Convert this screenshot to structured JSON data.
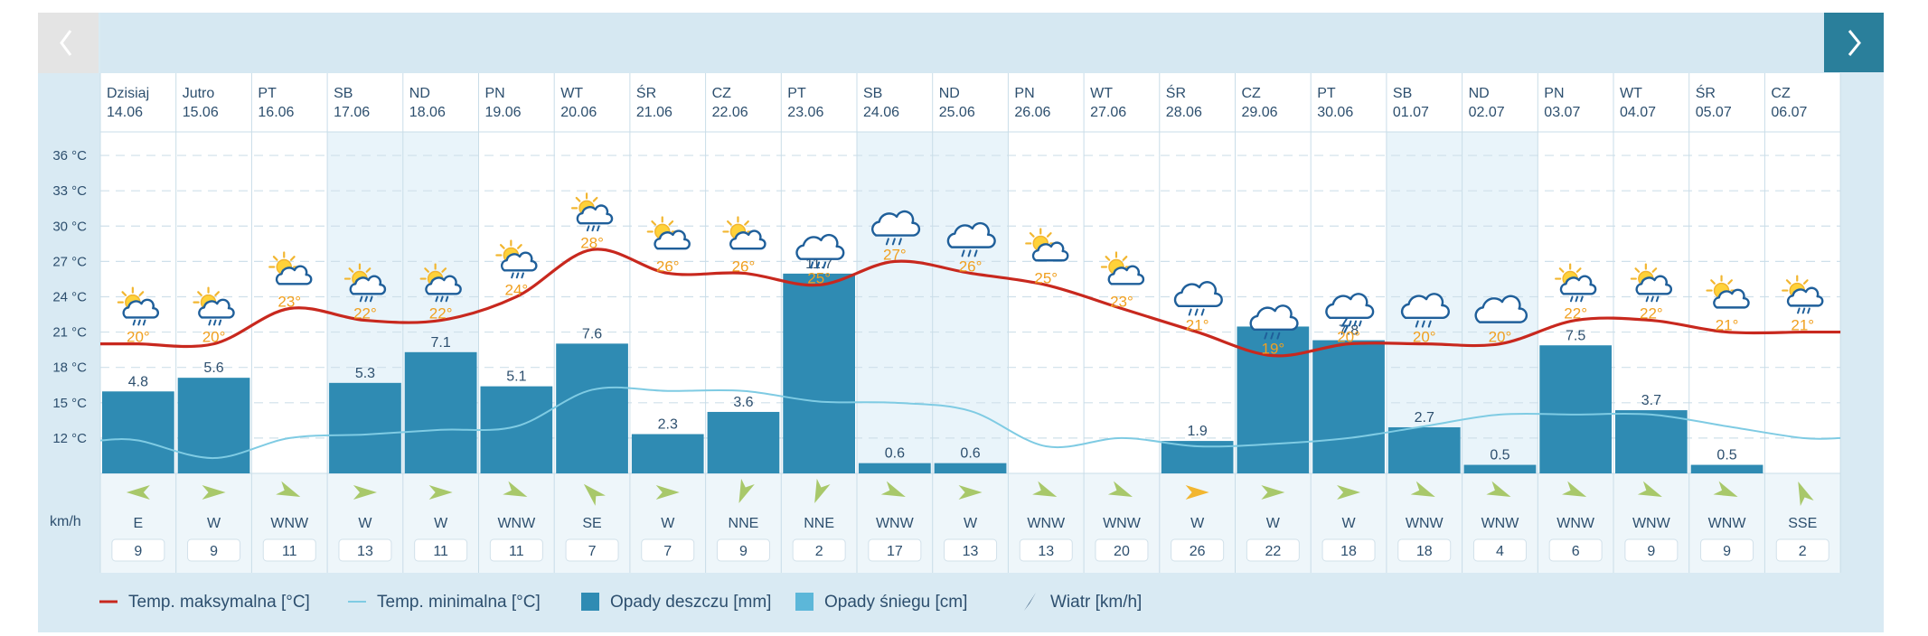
{
  "nav": {
    "prev_icon": "chevron-left-icon",
    "next_icon": "chevron-right-icon"
  },
  "axis": {
    "temp_ticks": [
      "36 °C",
      "33 °C",
      "30 °C",
      "27 °C",
      "24 °C",
      "21 °C",
      "18 °C",
      "15 °C",
      "12 °C"
    ],
    "wind_unit": "km/h"
  },
  "colors": {
    "frame": "#d9eaf3",
    "next_button": "#2a7f9b",
    "weekend": "#e9f4fa",
    "max_line": "#c8281e",
    "min_line": "#7fcbe3",
    "rain_bar": "#2f8bb3",
    "snow": "#5cb7d9",
    "temp_label": "#f0a020",
    "text": "#2d4f6e",
    "wind_arrow": "#a8c86a",
    "wind_arrow_strong": "#f2b630"
  },
  "chart_data": {
    "type": "combo",
    "temp_axis_range": [
      9,
      38
    ],
    "rain_axis_range": [
      0,
      20
    ],
    "days": [
      {
        "day": "Dzisiaj",
        "date": "14.06",
        "max": 20,
        "max_label": "20°",
        "min": 11.8,
        "rain": 4.8,
        "rain_label": "4.8",
        "wind_dir": "E",
        "wind_speed": "9",
        "icon": "sun-rain-icon",
        "weekend": false
      },
      {
        "day": "Jutro",
        "date": "15.06",
        "max": 20,
        "max_label": "20°",
        "min": 10.3,
        "rain": 5.6,
        "rain_label": "5.6",
        "wind_dir": "W",
        "wind_speed": "9",
        "icon": "sun-rain-icon",
        "weekend": false
      },
      {
        "day": "PT",
        "date": "16.06",
        "max": 23,
        "max_label": "23°",
        "min": 12.0,
        "rain": 0,
        "rain_label": "",
        "wind_dir": "WNW",
        "wind_speed": "11",
        "icon": "sun-cloud-icon",
        "weekend": false
      },
      {
        "day": "SB",
        "date": "17.06",
        "max": 22,
        "max_label": "22°",
        "min": 12.3,
        "rain": 5.3,
        "rain_label": "5.3",
        "wind_dir": "W",
        "wind_speed": "13",
        "icon": "sun-rain-icon",
        "weekend": true
      },
      {
        "day": "ND",
        "date": "18.06",
        "max": 22,
        "max_label": "22°",
        "min": 12.7,
        "rain": 7.1,
        "rain_label": "7.1",
        "wind_dir": "W",
        "wind_speed": "11",
        "icon": "sun-rain-icon",
        "weekend": true
      },
      {
        "day": "PN",
        "date": "19.06",
        "max": 24,
        "max_label": "24°",
        "min": 13.0,
        "rain": 5.1,
        "rain_label": "5.1",
        "wind_dir": "WNW",
        "wind_speed": "11",
        "icon": "sun-rain-icon",
        "weekend": false
      },
      {
        "day": "WT",
        "date": "20.06",
        "max": 28,
        "max_label": "28°",
        "min": 16.1,
        "rain": 7.6,
        "rain_label": "7.6",
        "wind_dir": "SE",
        "wind_speed": "7",
        "icon": "sun-rain-icon",
        "weekend": false
      },
      {
        "day": "ŚR",
        "date": "21.06",
        "max": 26,
        "max_label": "26°",
        "min": 16.0,
        "rain": 2.3,
        "rain_label": "2.3",
        "wind_dir": "W",
        "wind_speed": "7",
        "icon": "sun-cloud-icon",
        "weekend": false
      },
      {
        "day": "CZ",
        "date": "22.06",
        "max": 26,
        "max_label": "26°",
        "min": 16.0,
        "rain": 3.6,
        "rain_label": "3.6",
        "wind_dir": "NNE",
        "wind_speed": "9",
        "icon": "sun-cloud-icon",
        "weekend": false
      },
      {
        "day": "PT",
        "date": "23.06",
        "max": 25,
        "max_label": "25°",
        "min": 15.1,
        "rain": 11.7,
        "rain_label": "11.7",
        "wind_dir": "NNE",
        "wind_speed": "2",
        "icon": "cloud-rain-icon",
        "weekend": false
      },
      {
        "day": "SB",
        "date": "24.06",
        "max": 27,
        "max_label": "27°",
        "min": 15.0,
        "rain": 0.6,
        "rain_label": "0.6",
        "wind_dir": "WNW",
        "wind_speed": "17",
        "icon": "cloud-rain-icon",
        "weekend": true
      },
      {
        "day": "ND",
        "date": "25.06",
        "max": 26,
        "max_label": "26°",
        "min": 14.3,
        "rain": 0.6,
        "rain_label": "0.6",
        "wind_dir": "W",
        "wind_speed": "13",
        "icon": "cloud-rain-icon",
        "weekend": true
      },
      {
        "day": "PN",
        "date": "26.06",
        "max": 25,
        "max_label": "25°",
        "min": 11.3,
        "rain": 0,
        "rain_label": "",
        "wind_dir": "WNW",
        "wind_speed": "13",
        "icon": "sun-cloud-icon",
        "weekend": false
      },
      {
        "day": "WT",
        "date": "27.06",
        "max": 23,
        "max_label": "23°",
        "min": 12.0,
        "rain": 0,
        "rain_label": "",
        "wind_dir": "WNW",
        "wind_speed": "20",
        "icon": "sun-cloud-icon",
        "weekend": false
      },
      {
        "day": "ŚR",
        "date": "28.06",
        "max": 21,
        "max_label": "21°",
        "min": 11.3,
        "rain": 1.9,
        "rain_label": "1.9",
        "wind_dir": "W",
        "wind_speed": "26",
        "icon": "cloud-rain-icon",
        "weekend": false
      },
      {
        "day": "CZ",
        "date": "29.06",
        "max": 19,
        "max_label": "19°",
        "min": 11.5,
        "rain": 8.6,
        "rain_label": "8.6",
        "wind_dir": "W",
        "wind_speed": "22",
        "icon": "cloud-rain-icon",
        "weekend": false
      },
      {
        "day": "PT",
        "date": "30.06",
        "max": 20,
        "max_label": "20°",
        "min": 12.0,
        "rain": 7.8,
        "rain_label": "7.8",
        "wind_dir": "W",
        "wind_speed": "18",
        "icon": "cloud-storm-icon",
        "weekend": false
      },
      {
        "day": "SB",
        "date": "01.07",
        "max": 20,
        "max_label": "20°",
        "min": 13.0,
        "rain": 2.7,
        "rain_label": "2.7",
        "wind_dir": "WNW",
        "wind_speed": "18",
        "icon": "cloud-rain-icon",
        "weekend": true
      },
      {
        "day": "ND",
        "date": "02.07",
        "max": 20,
        "max_label": "20°",
        "min": 14.0,
        "rain": 0.5,
        "rain_label": "0.5",
        "wind_dir": "WNW",
        "wind_speed": "4",
        "icon": "cloud-icon",
        "weekend": true
      },
      {
        "day": "PN",
        "date": "03.07",
        "max": 22,
        "max_label": "22°",
        "min": 14.0,
        "rain": 7.5,
        "rain_label": "7.5",
        "wind_dir": "WNW",
        "wind_speed": "6",
        "icon": "sun-rain-icon",
        "weekend": false
      },
      {
        "day": "WT",
        "date": "04.07",
        "max": 22,
        "max_label": "22°",
        "min": 14.0,
        "rain": 3.7,
        "rain_label": "3.7",
        "wind_dir": "WNW",
        "wind_speed": "9",
        "icon": "sun-rain-icon",
        "weekend": false
      },
      {
        "day": "ŚR",
        "date": "05.07",
        "max": 21,
        "max_label": "21°",
        "min": 13.0,
        "rain": 0.5,
        "rain_label": "0.5",
        "wind_dir": "WNW",
        "wind_speed": "9",
        "icon": "sun-cloud-icon",
        "weekend": false
      },
      {
        "day": "CZ",
        "date": "06.07",
        "max": 21,
        "max_label": "21°",
        "min": 12.0,
        "rain": 0,
        "rain_label": "",
        "wind_dir": "SSE",
        "wind_speed": "2",
        "icon": "sun-rain-icon",
        "weekend": false
      }
    ]
  },
  "legend": [
    {
      "label": "Temp. maksymalna [°C]",
      "kind": "max-line"
    },
    {
      "label": "Temp. minimalna [°C]",
      "kind": "min-line"
    },
    {
      "label": "Opady deszczu [mm]",
      "kind": "rain"
    },
    {
      "label": "Opady śniegu [cm]",
      "kind": "snow"
    },
    {
      "label": "Wiatr [km/h]",
      "kind": "wind"
    }
  ]
}
